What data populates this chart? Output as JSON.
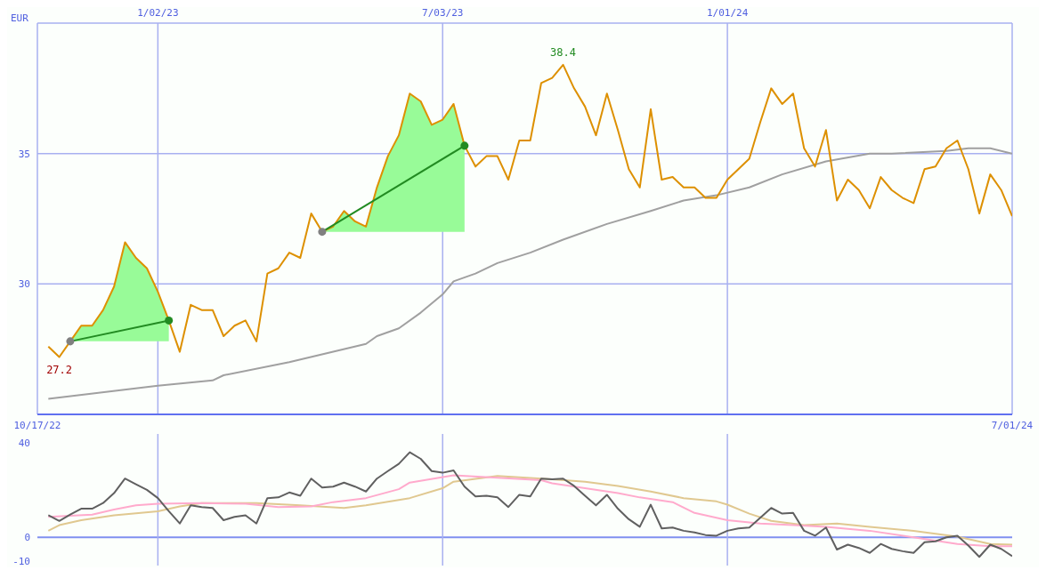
{
  "chart_data": [
    {
      "type": "line",
      "ylabel": "EUR",
      "xlim": [
        "2022-10-17",
        "2024-07-01"
      ],
      "xticks": [
        {
          "value": "2022-10-17",
          "label": "10/17/22"
        },
        {
          "value": "2024-07-01",
          "label": "7/01/24"
        }
      ],
      "x2lim": [
        "2022-10-17",
        "2024-07-01"
      ],
      "x2ticks": [
        {
          "value": "2023-01-02",
          "label": "1/02/23"
        },
        {
          "value": "2023-07-03",
          "label": "7/03/23"
        },
        {
          "value": "2024-01-01",
          "label": "1/01/24"
        }
      ],
      "ylim": [
        25,
        40
      ],
      "yticks": [
        30,
        35
      ],
      "grid": true,
      "annotations": [
        {
          "text": "38.4",
          "x": "2023-09-18",
          "y": 38.4
        },
        {
          "text": "27.2",
          "x": "2022-10-31",
          "y": 27.2
        }
      ],
      "x": [
        "2022-10-24",
        "2022-10-31",
        "2022-11-07",
        "2022-11-14",
        "2022-11-21",
        "2022-11-28",
        "2022-12-05",
        "2022-12-12",
        "2022-12-19",
        "2022-12-26",
        "2023-01-02",
        "2023-01-09",
        "2023-01-16",
        "2023-01-23",
        "2023-01-30",
        "2023-02-06",
        "2023-02-13",
        "2023-02-20",
        "2023-02-27",
        "2023-03-06",
        "2023-03-13",
        "2023-03-20",
        "2023-03-27",
        "2023-04-03",
        "2023-04-10",
        "2023-04-17",
        "2023-04-24",
        "2023-05-01",
        "2023-05-08",
        "2023-05-15",
        "2023-05-22",
        "2023-05-29",
        "2023-06-05",
        "2023-06-12",
        "2023-06-19",
        "2023-06-26",
        "2023-07-03",
        "2023-07-10",
        "2023-07-17",
        "2023-07-24",
        "2023-07-31",
        "2023-08-07",
        "2023-08-14",
        "2023-08-21",
        "2023-08-28",
        "2023-09-04",
        "2023-09-11",
        "2023-09-18",
        "2023-09-25",
        "2023-10-02",
        "2023-10-09",
        "2023-10-16",
        "2023-10-23",
        "2023-10-30",
        "2023-11-06",
        "2023-11-13",
        "2023-11-20",
        "2023-11-27",
        "2023-12-04",
        "2023-12-11",
        "2023-12-18",
        "2023-12-25",
        "2024-01-01",
        "2024-01-08",
        "2024-01-15",
        "2024-01-22",
        "2024-01-29",
        "2024-02-05",
        "2024-02-12",
        "2024-02-19",
        "2024-02-26",
        "2024-03-04",
        "2024-03-11",
        "2024-03-18",
        "2024-03-25",
        "2024-04-01",
        "2024-04-08",
        "2024-04-15",
        "2024-04-22",
        "2024-04-29",
        "2024-05-06",
        "2024-05-13",
        "2024-05-20",
        "2024-05-27",
        "2024-06-03",
        "2024-06-10",
        "2024-06-17",
        "2024-06-24",
        "2024-07-01"
      ],
      "series": [
        {
          "color": "#a0a0a0",
          "x": [
            "2022-10-24",
            "2023-01-02",
            "2023-02-06",
            "2023-02-13",
            "2023-03-27",
            "2023-05-15",
            "2023-05-22",
            "2023-06-05",
            "2023-06-19",
            "2023-07-03",
            "2023-07-10",
            "2023-07-24",
            "2023-08-07",
            "2023-08-28",
            "2023-09-18",
            "2023-10-16",
            "2023-11-13",
            "2023-12-04",
            "2023-12-25",
            "2024-01-15",
            "2024-02-05",
            "2024-03-04",
            "2024-04-01",
            "2024-04-15",
            "2024-05-20",
            "2024-06-03",
            "2024-06-17",
            "2024-07-01"
          ],
          "values": [
            25.6,
            26.1,
            26.3,
            26.5,
            27.0,
            27.7,
            28.0,
            28.3,
            28.9,
            29.6,
            30.1,
            30.4,
            30.8,
            31.2,
            31.7,
            32.3,
            32.8,
            33.2,
            33.4,
            33.7,
            34.2,
            34.7,
            35.0,
            35.0,
            35.1,
            35.2,
            35.2,
            35.0
          ]
        },
        {
          "color": "#dd9000",
          "values": [
            27.6,
            27.2,
            27.8,
            28.4,
            28.4,
            29.0,
            29.9,
            31.6,
            31.0,
            30.6,
            29.7,
            28.6,
            27.4,
            29.2,
            29.0,
            29.0,
            28.0,
            28.4,
            28.6,
            27.8,
            30.4,
            30.6,
            31.2,
            31.0,
            32.7,
            32.0,
            32.2,
            32.8,
            32.4,
            32.2,
            33.7,
            34.9,
            35.7,
            37.3,
            37.0,
            36.1,
            36.3,
            36.9,
            35.3,
            34.5,
            34.9,
            34.9,
            34.0,
            35.5,
            35.5,
            37.7,
            37.9,
            38.4,
            37.5,
            36.8,
            35.7,
            37.3,
            35.9,
            34.4,
            33.7,
            36.7,
            34.0,
            34.1,
            33.7,
            33.7,
            33.3,
            33.3,
            34.0,
            34.4,
            34.8,
            36.2,
            37.5,
            36.9,
            37.3,
            35.2,
            34.5,
            35.9,
            33.2,
            34.0,
            33.6,
            32.9,
            34.1,
            33.6,
            33.3,
            33.1,
            34.4,
            34.5,
            35.2,
            35.5,
            34.4,
            32.7,
            34.2,
            33.6,
            32.6
          ]
        },
        {
          "color": "#228b22",
          "x": [
            "2022-11-07",
            "2022-11-14",
            "2022-11-21",
            "2022-11-28",
            "2022-12-05",
            "2022-12-12",
            "2022-12-19",
            "2022-12-26",
            "2023-01-02",
            "2023-01-09"
          ],
          "values": [
            27.8,
            null,
            null,
            null,
            null,
            null,
            null,
            null,
            null,
            28.6
          ],
          "lower": [
            27.8,
            27.8,
            27.8,
            27.8,
            27.8,
            27.8,
            27.8,
            27.8,
            27.8,
            27.8
          ],
          "upper": [
            27.8,
            28.4,
            28.4,
            29.0,
            29.9,
            31.6,
            31.0,
            30.6,
            29.7,
            28.6
          ]
        },
        {
          "color": "#228b22",
          "x": [
            "2023-04-17",
            "2023-04-24",
            "2023-05-01",
            "2023-05-08",
            "2023-05-15",
            "2023-05-22",
            "2023-05-29",
            "2023-06-05",
            "2023-06-12",
            "2023-06-19",
            "2023-06-26",
            "2023-07-03",
            "2023-07-10",
            "2023-07-17"
          ],
          "values": [
            32.0,
            null,
            null,
            null,
            null,
            null,
            null,
            null,
            null,
            null,
            null,
            null,
            null,
            35.3
          ],
          "lower": [
            32.0,
            32.0,
            32.0,
            32.0,
            32.0,
            32.0,
            32.0,
            32.0,
            32.0,
            32.0,
            32.0,
            32.0,
            32.0,
            32.0
          ],
          "upper": [
            32.0,
            32.2,
            32.8,
            32.4,
            32.2,
            33.7,
            34.9,
            35.7,
            37.3,
            37.0,
            36.1,
            36.3,
            36.9,
            35.3
          ]
        },
        {
          "type": "scatter",
          "color": "#808080",
          "marker": "circle",
          "x": [
            "2022-11-07",
            "2023-04-17"
          ],
          "values": [
            27.8,
            32.0
          ]
        },
        {
          "type": "scatter",
          "color": "#228b22",
          "marker": "circle",
          "x": [
            "2023-01-09",
            "2023-07-17"
          ],
          "values": [
            28.6,
            35.3
          ]
        }
      ]
    },
    {
      "type": "line",
      "xlim": [
        "2022-10-17",
        "2024-07-01"
      ],
      "tick_labels": "y",
      "ylim": [
        -12,
        44
      ],
      "yticks": [
        -10,
        0,
        40
      ],
      "ref_lines": [
        {
          "axis": "y",
          "value": 0
        },
        {
          "axis": "x",
          "value": "2023-01-02"
        },
        {
          "axis": "x",
          "value": "2023-07-03"
        },
        {
          "axis": "x",
          "value": "2024-01-01"
        }
      ],
      "x": [
        "2022-10-24",
        "2022-10-31",
        "2022-11-07",
        "2022-11-14",
        "2022-11-21",
        "2022-11-28",
        "2022-12-05",
        "2022-12-12",
        "2022-12-19",
        "2022-12-26",
        "2023-01-02",
        "2023-01-09",
        "2023-01-16",
        "2023-01-23",
        "2023-01-30",
        "2023-02-06",
        "2023-02-13",
        "2023-02-20",
        "2023-02-27",
        "2023-03-06",
        "2023-03-13",
        "2023-03-20",
        "2023-03-27",
        "2023-04-03",
        "2023-04-10",
        "2023-04-17",
        "2023-04-24",
        "2023-05-01",
        "2023-05-08",
        "2023-05-15",
        "2023-05-22",
        "2023-05-29",
        "2023-06-05",
        "2023-06-12",
        "2023-06-19",
        "2023-06-26",
        "2023-07-03",
        "2023-07-10",
        "2023-07-17",
        "2023-07-24",
        "2023-07-31",
        "2023-08-07",
        "2023-08-14",
        "2023-08-21",
        "2023-08-28",
        "2023-09-04",
        "2023-09-11",
        "2023-09-18",
        "2023-09-25",
        "2023-10-02",
        "2023-10-09",
        "2023-10-16",
        "2023-10-23",
        "2023-10-30",
        "2023-11-06",
        "2023-11-13",
        "2023-11-20",
        "2023-11-27",
        "2023-12-04",
        "2023-12-11",
        "2023-12-18",
        "2023-12-25",
        "2024-01-01",
        "2024-01-08",
        "2024-01-15",
        "2024-01-22",
        "2024-01-29",
        "2024-02-05",
        "2024-02-12",
        "2024-02-19",
        "2024-02-26",
        "2024-03-04",
        "2024-03-11",
        "2024-03-18",
        "2024-03-25",
        "2024-04-01",
        "2024-04-08",
        "2024-04-15",
        "2024-04-22",
        "2024-04-29",
        "2024-05-06",
        "2024-05-13",
        "2024-05-20",
        "2024-05-27",
        "2024-06-03",
        "2024-06-10",
        "2024-06-17",
        "2024-06-24",
        "2024-07-01"
      ],
      "series": [
        {
          "color": "#e0c890",
          "x": [
            "2022-10-24",
            "2022-10-31",
            "2022-11-14",
            "2022-12-05",
            "2023-01-02",
            "2023-01-16",
            "2023-01-30",
            "2023-03-06",
            "2023-04-03",
            "2023-05-01",
            "2023-05-15",
            "2023-06-12",
            "2023-07-03",
            "2023-07-10",
            "2023-08-07",
            "2023-09-04",
            "2023-09-11",
            "2023-10-02",
            "2023-10-23",
            "2023-11-13",
            "2023-12-04",
            "2023-12-25",
            "2024-01-01",
            "2024-01-15",
            "2024-01-29",
            "2024-02-19",
            "2024-03-11",
            "2024-04-01",
            "2024-04-29",
            "2024-05-27",
            "2024-06-17",
            "2024-07-01"
          ],
          "values": [
            2.8,
            5.2,
            7.3,
            9.4,
            11.1,
            13.2,
            14.6,
            14.6,
            13.6,
            12.5,
            13.6,
            16.7,
            20.9,
            23.7,
            26.1,
            25.0,
            24.7,
            23.7,
            21.9,
            19.5,
            16.7,
            15.3,
            13.9,
            10.1,
            7.0,
            5.2,
            5.9,
            4.5,
            2.8,
            0.3,
            -2.8,
            -3.1
          ]
        },
        {
          "color": "#ffaacc",
          "x": [
            "2022-10-24",
            "2022-11-21",
            "2022-12-05",
            "2022-12-19",
            "2023-01-02",
            "2023-01-30",
            "2023-02-27",
            "2023-03-20",
            "2023-04-10",
            "2023-04-24",
            "2023-05-15",
            "2023-06-05",
            "2023-06-12",
            "2023-07-10",
            "2023-08-07",
            "2023-09-04",
            "2023-09-11",
            "2023-10-02",
            "2023-10-23",
            "2023-11-06",
            "2023-11-27",
            "2023-12-11",
            "2024-01-01",
            "2024-01-22",
            "2024-02-12",
            "2024-03-04",
            "2024-04-01",
            "2024-04-29",
            "2024-05-27",
            "2024-06-17",
            "2024-07-01"
          ],
          "values": [
            8.7,
            9.7,
            11.8,
            13.6,
            14.3,
            14.6,
            14.3,
            12.9,
            13.2,
            15.0,
            16.7,
            20.5,
            23.3,
            26.4,
            25.4,
            24.3,
            23.0,
            20.9,
            18.8,
            17.0,
            15.0,
            10.4,
            7.3,
            5.9,
            5.2,
            4.5,
            2.8,
            0.0,
            -2.8,
            -3.8,
            -3.8
          ]
        },
        {
          "color": "#606060",
          "values": [
            9.4,
            7.0,
            9.7,
            12.2,
            12.2,
            14.6,
            18.8,
            25.0,
            22.6,
            20.2,
            16.7,
            11.1,
            5.9,
            13.6,
            12.9,
            12.5,
            7.3,
            8.7,
            9.4,
            5.9,
            16.7,
            17.0,
            19.1,
            17.7,
            25.0,
            21.2,
            21.6,
            23.3,
            21.6,
            19.5,
            25.0,
            28.2,
            31.3,
            36.2,
            33.4,
            28.2,
            27.5,
            28.5,
            21.6,
            17.4,
            17.7,
            17.0,
            12.9,
            18.1,
            17.4,
            25.0,
            24.7,
            25.0,
            21.9,
            17.7,
            13.6,
            18.1,
            12.2,
            7.7,
            4.5,
            13.9,
            3.8,
            4.2,
            2.8,
            2.1,
            1.0,
            0.7,
            2.8,
            3.8,
            4.2,
            8.3,
            12.5,
            10.1,
            10.4,
            2.8,
            0.7,
            4.2,
            -5.2,
            -3.1,
            -4.5,
            -6.6,
            -2.8,
            -4.9,
            -5.9,
            -6.6,
            -2.1,
            -1.7,
            0.0,
            0.7,
            -3.5,
            -8.3,
            -3.1,
            -4.9,
            -8.0
          ]
        }
      ]
    }
  ]
}
